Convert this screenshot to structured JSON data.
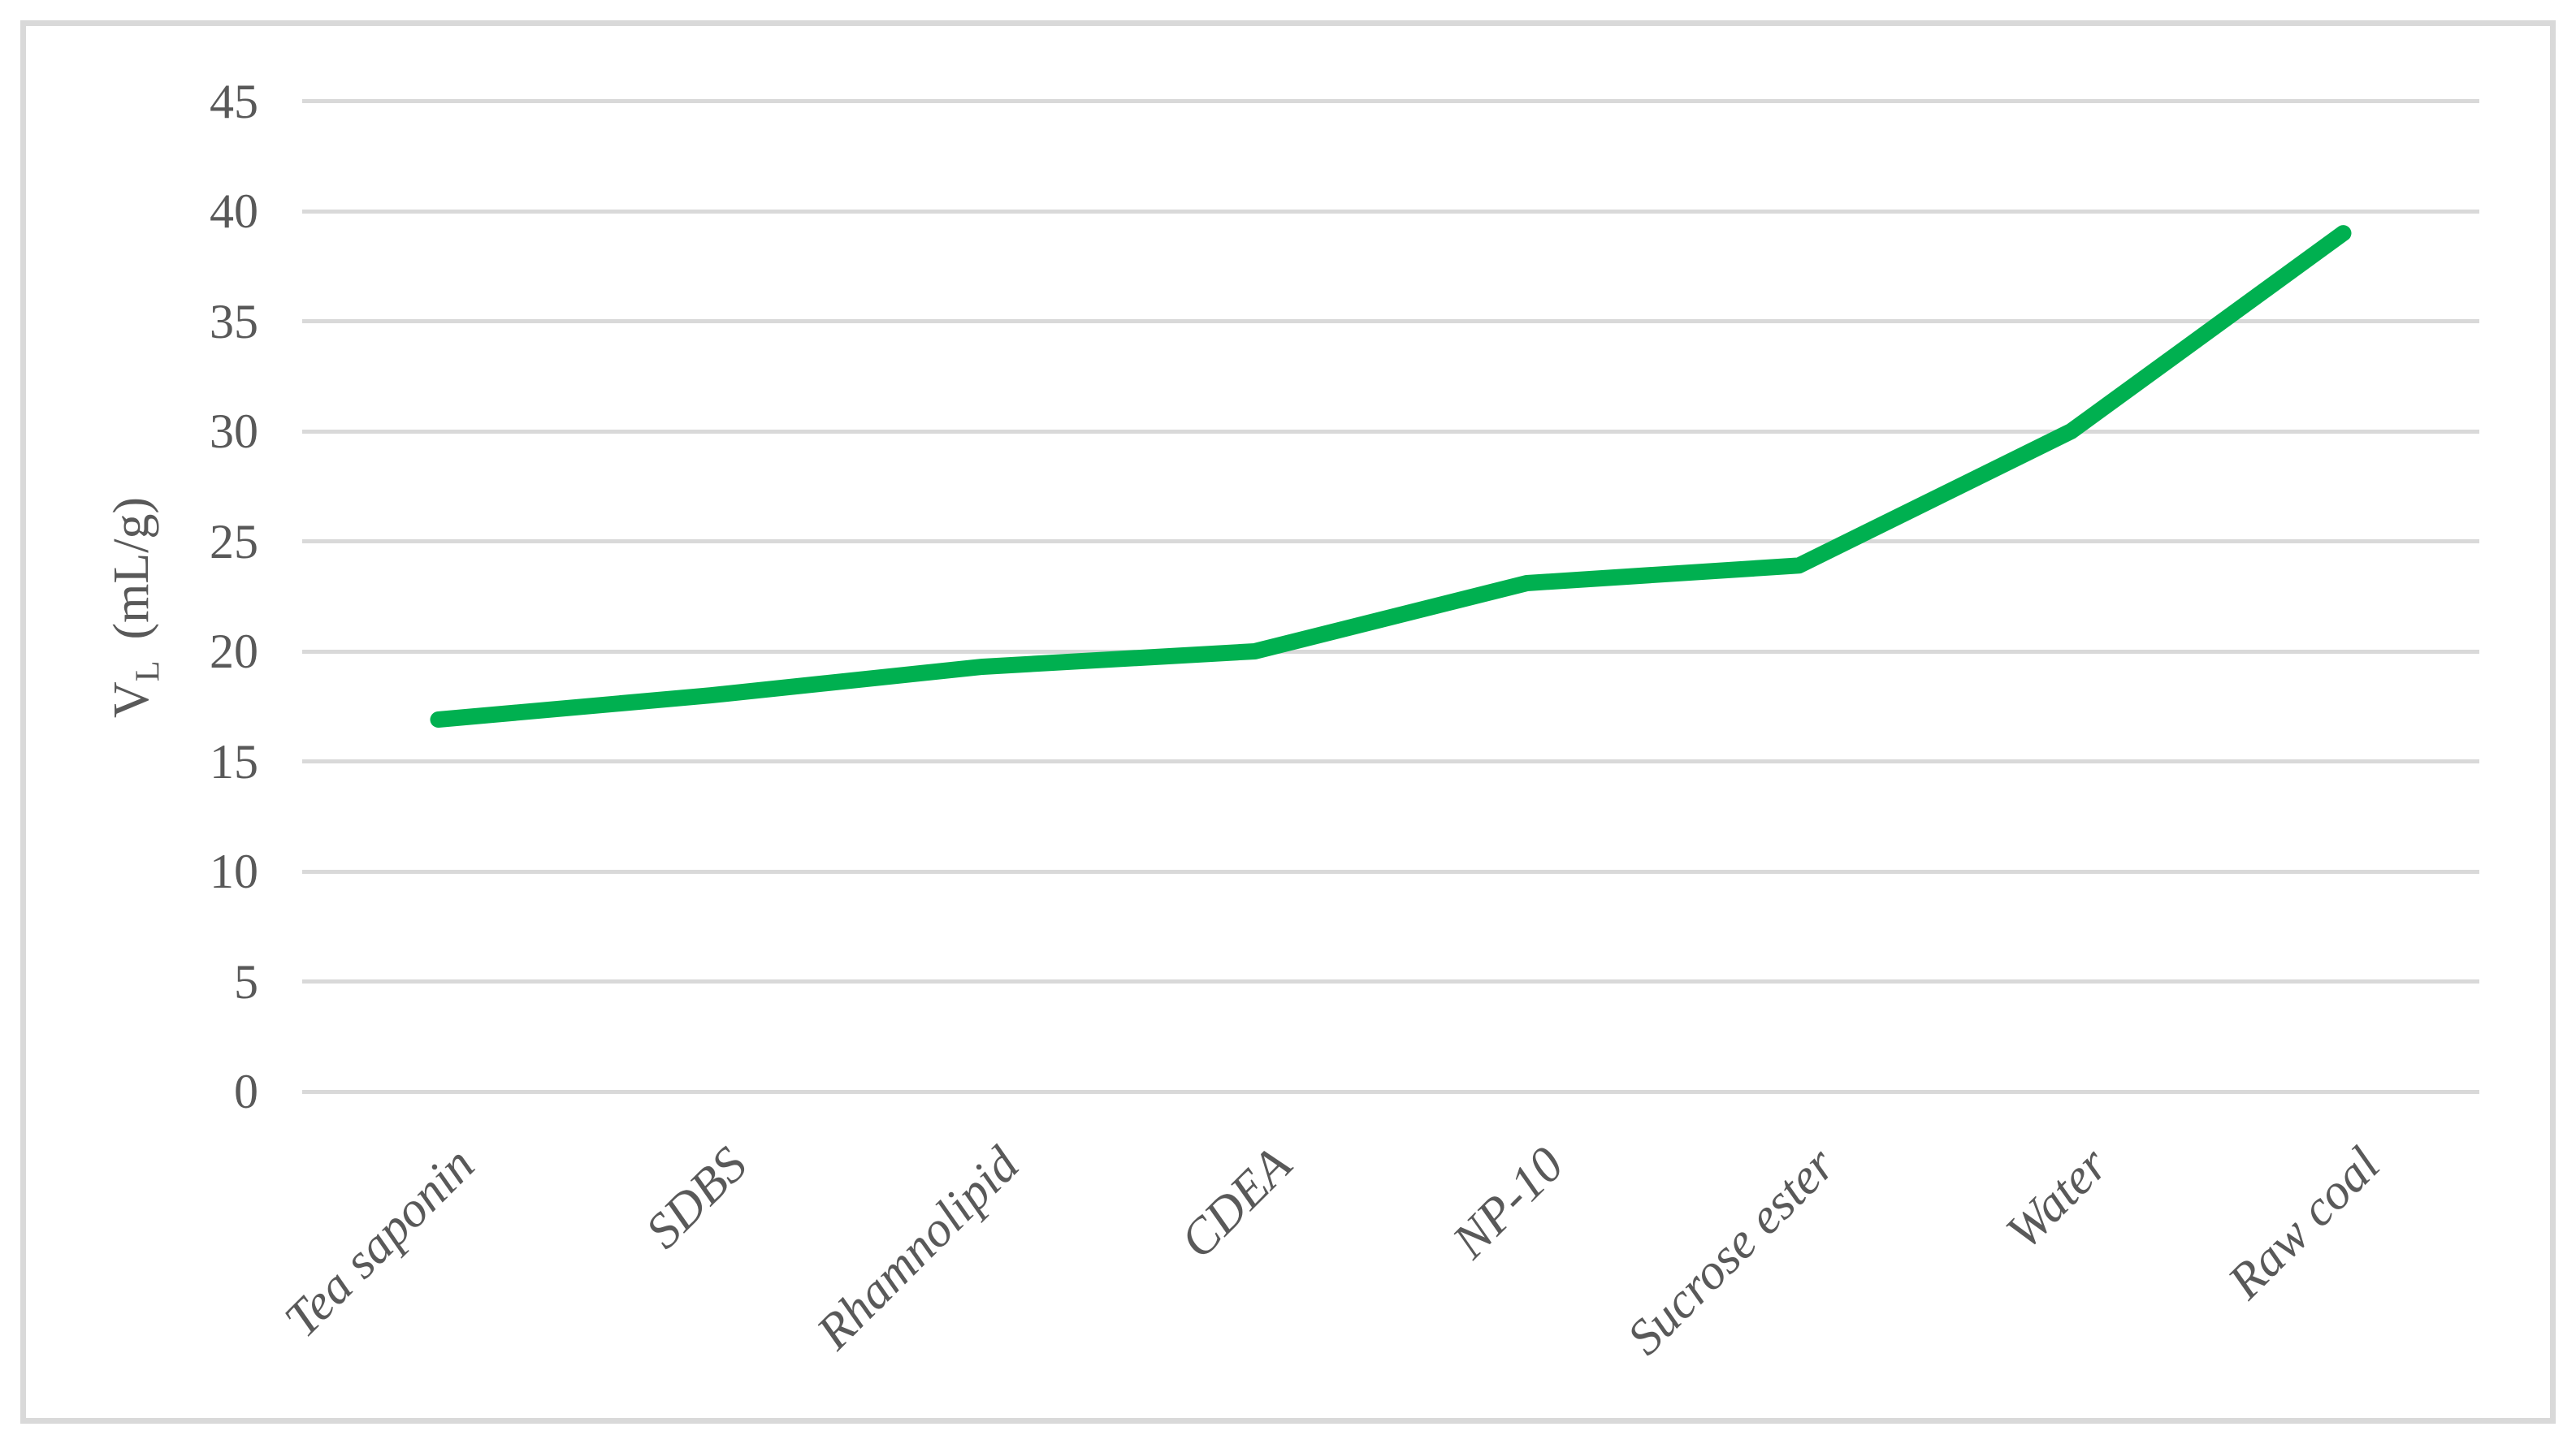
{
  "figure": {
    "background": "#FFFFFF",
    "border_color": "#D9D9D9"
  },
  "chart_data": {
    "type": "line",
    "title": "",
    "xlabel": "",
    "ylabel": "VL (mL/g)",
    "ylabel_parts": {
      "symbol": "V",
      "subscript": "L",
      "unit": "(mL/g)"
    },
    "categories": [
      "Tea saponin",
      "SDBS",
      "Rhamnolipid",
      "CDEA",
      "NP-10",
      "Sucrose ester",
      "Water",
      "Raw coal"
    ],
    "series": [
      {
        "name": "VL",
        "values": [
          16.9,
          18,
          19.3,
          20,
          23.1,
          23.9,
          30,
          39
        ],
        "color": "#00B050"
      }
    ],
    "ylim": [
      0,
      45
    ],
    "yticks": [
      0,
      5,
      10,
      15,
      20,
      25,
      30,
      35,
      40,
      45
    ],
    "grid": "horizontal",
    "gridline_color": "#D9D9D9",
    "tick_label_color": "#595959",
    "legend": "none"
  }
}
